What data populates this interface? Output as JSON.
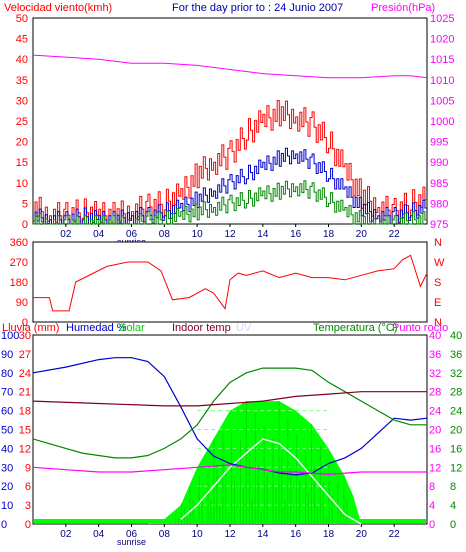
{
  "chart_data": [
    {
      "type": "line",
      "panel": "wind-pressure",
      "header": {
        "left": "Velocidad viento(kmh)",
        "center": "For the day prior to : 24 Junio 2007",
        "right": "Presión(hPa)"
      },
      "left_axis": {
        "min": 0,
        "max": 50,
        "ticks": [
          "0",
          "5",
          "10",
          "15",
          "20",
          "25",
          "30",
          "35",
          "40",
          "45",
          "50"
        ],
        "color": "#ff0000"
      },
      "right_axis": {
        "min": 975,
        "max": 1025,
        "ticks": [
          "975",
          "980",
          "985",
          "990",
          "995",
          "1000",
          "1005",
          "1010",
          "1015",
          "1020",
          "1025"
        ],
        "color": "#ff00ff"
      },
      "x_ticks": [
        "02",
        "04",
        "06",
        "08",
        "10",
        "12",
        "14",
        "16",
        "18",
        "20",
        "22"
      ],
      "x_marker": "sunrise",
      "series": [
        {
          "role": "gust",
          "axis": "left",
          "color": "#ff0000",
          "x": [
            0,
            1,
            2,
            3,
            4,
            5,
            6,
            7,
            8,
            9,
            10,
            11,
            12,
            13,
            14,
            15,
            16,
            17,
            18,
            19,
            20,
            21,
            22,
            23,
            24
          ],
          "y": [
            4,
            2,
            2,
            3,
            2,
            2,
            3,
            4,
            5,
            7,
            12,
            15,
            17,
            22,
            25,
            27,
            26,
            24,
            20,
            13,
            7,
            4,
            3,
            5,
            6
          ]
        },
        {
          "role": "average",
          "axis": "left",
          "color": "#0000cc",
          "x": [
            0,
            1,
            2,
            3,
            4,
            5,
            6,
            7,
            8,
            9,
            10,
            11,
            12,
            13,
            14,
            15,
            16,
            17,
            18,
            19,
            20,
            21,
            22,
            23,
            24
          ],
          "y": [
            2,
            1,
            1,
            2,
            1,
            1,
            2,
            2,
            3,
            4,
            6,
            8,
            10,
            12,
            14,
            16,
            17,
            15,
            12,
            8,
            4,
            2,
            2,
            3,
            4
          ]
        },
        {
          "role": "lull",
          "axis": "left",
          "color": "#008800",
          "x": [
            0,
            1,
            2,
            3,
            4,
            5,
            6,
            7,
            8,
            9,
            10,
            11,
            12,
            13,
            14,
            15,
            16,
            17,
            18,
            19,
            20,
            21,
            22,
            23,
            24
          ],
          "y": [
            1,
            0,
            0,
            0,
            0,
            0,
            0,
            1,
            1,
            2,
            3,
            4,
            5,
            6,
            7,
            8,
            9,
            8,
            6,
            3,
            1,
            0,
            0,
            1,
            1
          ]
        },
        {
          "role": "pressure",
          "axis": "right",
          "color": "#ff00ff",
          "x": [
            0,
            2,
            4,
            6,
            8,
            10,
            12,
            14,
            16,
            18,
            20,
            22,
            23,
            24
          ],
          "y": [
            1016,
            1015.5,
            1015,
            1014,
            1014,
            1013.5,
            1012.5,
            1011.5,
            1011,
            1010.5,
            1010.5,
            1011,
            1011,
            1010.5
          ]
        }
      ]
    },
    {
      "type": "line",
      "panel": "wind-direction",
      "left_axis": {
        "min": 0,
        "max": 360,
        "ticks": [
          "0",
          "90",
          "180",
          "270",
          "360"
        ],
        "color": "#ff0000"
      },
      "right_labels": [
        "N",
        "W",
        "S",
        "E",
        "N"
      ],
      "series": [
        {
          "role": "direction",
          "color": "#ff0000",
          "x": [
            0,
            1,
            1.2,
            2.2,
            2.6,
            4.5,
            5.8,
            7,
            7.8,
            8.5,
            9.5,
            10.5,
            11,
            11.7,
            12,
            12.5,
            13,
            14,
            15,
            16,
            17,
            18,
            19,
            20,
            21,
            22,
            22.5,
            23,
            23.6,
            24
          ],
          "y": [
            110,
            110,
            50,
            50,
            180,
            250,
            270,
            270,
            230,
            100,
            110,
            150,
            130,
            60,
            190,
            220,
            210,
            230,
            200,
            220,
            200,
            200,
            190,
            210,
            230,
            240,
            280,
            300,
            160,
            220
          ]
        }
      ]
    },
    {
      "type": "line",
      "panel": "rain-humidity-temperature",
      "header": {
        "rain": "Lluvia (mm)",
        "humidity": "Humedad %",
        "solar": "Solar",
        "indoor": "Indoor temp",
        "uv": "UV",
        "temperature": "Temperatura (°C)",
        "dewpoint": "Punto rocío"
      },
      "axis_rain": {
        "min": 0,
        "max": 30,
        "ticks": [
          "0",
          "3",
          "6",
          "9",
          "12",
          "15",
          "18",
          "21",
          "24",
          "27",
          "30"
        ]
      },
      "axis_humidity": {
        "min": 0,
        "max": 100,
        "ticks": [
          "0",
          "10",
          "20",
          "30",
          "40",
          "50",
          "60",
          "70",
          "80",
          "90",
          "100"
        ]
      },
      "axis_temperature": {
        "min": 0,
        "max": 40,
        "ticks": [
          "0",
          "4",
          "8",
          "12",
          "16",
          "20",
          "24",
          "28",
          "32",
          "36",
          "40"
        ]
      },
      "x_ticks": [
        "02",
        "04",
        "06",
        "08",
        "10",
        "12",
        "14",
        "16",
        "18",
        "20",
        "22"
      ],
      "x_marker": "sunrise",
      "series": [
        {
          "role": "humidity",
          "axis": "humidity",
          "color": "#0000cc",
          "x": [
            0,
            2,
            4,
            5,
            6,
            7,
            8,
            9,
            10,
            11,
            12,
            13,
            14,
            15,
            16,
            17,
            18,
            19,
            20,
            21,
            22,
            23,
            24
          ],
          "y": [
            80,
            83,
            87,
            88,
            88,
            86,
            78,
            62,
            45,
            36,
            32,
            30,
            29,
            27,
            26,
            27,
            32,
            35,
            40,
            48,
            56,
            55,
            56
          ]
        },
        {
          "role": "temperature",
          "axis": "temperature",
          "color": "#008800",
          "x": [
            0,
            1,
            2,
            3,
            4,
            5,
            6,
            7,
            8,
            9,
            10,
            11,
            12,
            13,
            14,
            15,
            16,
            17,
            18,
            19,
            20,
            21,
            22,
            23,
            24
          ],
          "y": [
            18,
            17,
            16,
            15,
            14.5,
            14,
            14,
            14.5,
            16,
            18,
            21,
            26,
            30,
            32,
            33,
            33,
            33,
            32.5,
            30,
            28,
            26,
            24,
            22,
            21,
            21
          ]
        },
        {
          "role": "indoor-temp",
          "axis": "temperature",
          "color": "#800020",
          "x": [
            0,
            4,
            8,
            10,
            12,
            14,
            16,
            18,
            20,
            22,
            24
          ],
          "y": [
            26,
            25.5,
            25,
            25,
            25.5,
            26,
            27,
            27.5,
            28,
            28,
            28
          ]
        },
        {
          "role": "dewpoint",
          "axis": "temperature",
          "color": "#ff00ff",
          "x": [
            0,
            2,
            4,
            6,
            8,
            10,
            12,
            14,
            15,
            16,
            18,
            20,
            22,
            24
          ],
          "y": [
            12,
            11.5,
            11,
            11,
            11.5,
            12,
            12.5,
            11.5,
            11,
            11,
            10.5,
            11,
            11,
            11
          ]
        },
        {
          "role": "solar",
          "axis": "temperature",
          "color": "#00ff00",
          "x": [
            7,
            8,
            9,
            9.5,
            10,
            11,
            12,
            13,
            14,
            15,
            16,
            17,
            18,
            19,
            19.5,
            20
          ],
          "y": [
            0,
            1,
            4,
            8,
            12,
            18,
            24,
            26,
            26,
            26,
            24,
            21,
            16,
            10,
            6,
            0
          ]
        },
        {
          "role": "uv",
          "axis": "temperature",
          "color": "#e0e0ff",
          "x": [
            9,
            10,
            11,
            12,
            13,
            14,
            15,
            16,
            17,
            18,
            19,
            20
          ],
          "y": [
            1,
            4,
            8,
            12,
            15,
            18,
            17,
            14,
            10,
            6,
            2,
            0
          ]
        }
      ]
    }
  ]
}
